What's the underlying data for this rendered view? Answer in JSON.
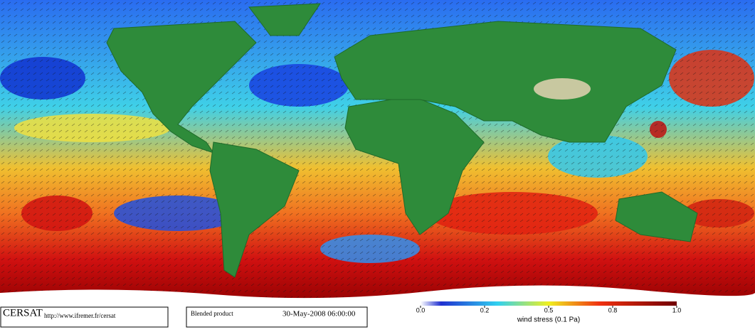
{
  "footer": {
    "logo": "CERSAT",
    "url": "http://www.ifremer.fr/cersat",
    "product": "Blended product",
    "date": "30-May-2008 06:00:00"
  },
  "colorbar": {
    "label": "wind stress (0.1 Pa)",
    "lim": [
      0,
      1
    ],
    "ticks": [
      {
        "value": 0,
        "label": "0.0"
      },
      {
        "value": 0.25,
        "label": "0.2"
      },
      {
        "value": 0.5,
        "label": "0.5"
      },
      {
        "value": 0.75,
        "label": "0.8"
      },
      {
        "value": 1,
        "label": "1.0"
      }
    ]
  }
}
